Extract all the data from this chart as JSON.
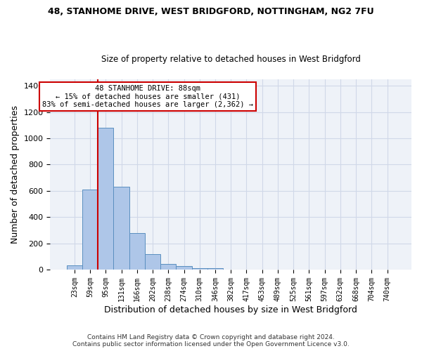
{
  "title": "48, STANHOME DRIVE, WEST BRIDGFORD, NOTTINGHAM, NG2 7FU",
  "subtitle": "Size of property relative to detached houses in West Bridgford",
  "xlabel": "Distribution of detached houses by size in West Bridgford",
  "ylabel": "Number of detached properties",
  "footer_line1": "Contains HM Land Registry data © Crown copyright and database right 2024.",
  "footer_line2": "Contains public sector information licensed under the Open Government Licence v3.0.",
  "bin_labels": [
    "23sqm",
    "59sqm",
    "95sqm",
    "131sqm",
    "166sqm",
    "202sqm",
    "238sqm",
    "274sqm",
    "310sqm",
    "346sqm",
    "382sqm",
    "417sqm",
    "453sqm",
    "489sqm",
    "525sqm",
    "561sqm",
    "597sqm",
    "632sqm",
    "668sqm",
    "704sqm",
    "740sqm"
  ],
  "bar_values": [
    30,
    610,
    1080,
    630,
    280,
    120,
    45,
    25,
    12,
    8,
    0,
    0,
    0,
    0,
    0,
    0,
    0,
    0,
    0,
    0,
    0
  ],
  "bar_color": "#aec6e8",
  "bar_edge_color": "#5a8fc0",
  "ylim": [
    0,
    1450
  ],
  "yticks": [
    0,
    200,
    400,
    600,
    800,
    1000,
    1200,
    1400
  ],
  "property_line_x": 1.5,
  "annotation_line1": "48 STANHOME DRIVE: 88sqm",
  "annotation_line2": "← 15% of detached houses are smaller (431)",
  "annotation_line3": "83% of semi-detached houses are larger (2,362) →",
  "annotation_box_color": "#ffffff",
  "annotation_border_color": "#cc0000",
  "grid_color": "#d0d8e8",
  "background_color": "#eef2f8",
  "title_fontsize": 9,
  "subtitle_fontsize": 8.5,
  "ylabel_fontsize": 9,
  "xlabel_fontsize": 9,
  "tick_fontsize": 8,
  "xtick_fontsize": 7,
  "footer_fontsize": 6.5,
  "annot_fontsize": 7.5
}
